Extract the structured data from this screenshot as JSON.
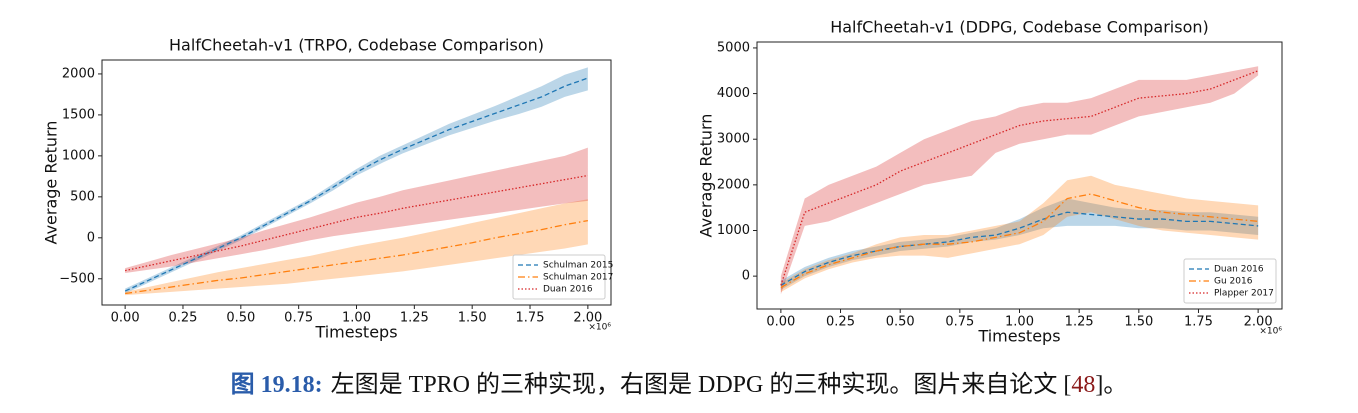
{
  "chart_data": [
    {
      "type": "line",
      "title": "HalfCheetah-v1 (TRPO, Codebase Comparison)",
      "x_label": "Timesteps",
      "y_label": "Average Return",
      "x_offset_label": "×10⁶",
      "x": [
        0,
        0.1,
        0.2,
        0.3,
        0.4,
        0.5,
        0.6,
        0.7,
        0.8,
        0.9,
        1.0,
        1.1,
        1.2,
        1.3,
        1.4,
        1.5,
        1.6,
        1.7,
        1.8,
        1.9,
        2.0
      ],
      "xlim": [
        -0.1,
        2.1
      ],
      "xticks": [
        {
          "value": 0,
          "label": "0.00"
        },
        {
          "value": 0.25,
          "label": "0.25"
        },
        {
          "value": 0.5,
          "label": "0.50"
        },
        {
          "value": 0.75,
          "label": "0.75"
        },
        {
          "value": 1,
          "label": "1.00"
        },
        {
          "value": 1.25,
          "label": "1.25"
        },
        {
          "value": 1.5,
          "label": "1.50"
        },
        {
          "value": 1.75,
          "label": "1.75"
        },
        {
          "value": 2,
          "label": "2.00"
        }
      ],
      "ylim": [
        -820,
        2170
      ],
      "yticks": [
        {
          "value": -500,
          "label": "−500"
        },
        0,
        500,
        1000,
        1500,
        2000
      ],
      "legend": "lower right",
      "series": [
        {
          "name": "Schulman 2015",
          "color": "#1f77b4",
          "linestyle": "dashed",
          "values": [
            -650,
            -520,
            -390,
            -260,
            -130,
            0,
            150,
            300,
            450,
            620,
            800,
            950,
            1080,
            1200,
            1320,
            1420,
            1520,
            1620,
            1720,
            1850,
            1950
          ],
          "lower": [
            -680,
            -550,
            -420,
            -290,
            -160,
            -30,
            120,
            270,
            420,
            580,
            760,
            900,
            1030,
            1140,
            1250,
            1340,
            1430,
            1510,
            1600,
            1720,
            1800
          ],
          "upper": [
            -620,
            -490,
            -360,
            -230,
            -100,
            30,
            180,
            330,
            480,
            660,
            840,
            1000,
            1130,
            1260,
            1390,
            1500,
            1610,
            1730,
            1850,
            1990,
            2080
          ]
        },
        {
          "name": "Schulman 2017",
          "color": "#ff7f0e",
          "linestyle": "dashdot",
          "values": [
            -680,
            -640,
            -600,
            -560,
            -520,
            -490,
            -450,
            -410,
            -370,
            -330,
            -290,
            -250,
            -210,
            -160,
            -110,
            -60,
            0,
            50,
            100,
            160,
            210
          ],
          "lower": [
            -700,
            -680,
            -660,
            -640,
            -620,
            -600,
            -580,
            -560,
            -530,
            -500,
            -470,
            -440,
            -410,
            -370,
            -330,
            -290,
            -250,
            -210,
            -170,
            -130,
            -80
          ],
          "upper": [
            -660,
            -600,
            -540,
            -480,
            -420,
            -370,
            -320,
            -270,
            -220,
            -160,
            -100,
            -50,
            0,
            60,
            120,
            180,
            240,
            300,
            360,
            420,
            470
          ]
        },
        {
          "name": "Duan 2016",
          "color": "#d62728",
          "linestyle": "dotted",
          "values": [
            -400,
            -340,
            -280,
            -220,
            -160,
            -100,
            -30,
            40,
            110,
            180,
            250,
            300,
            360,
            410,
            460,
            510,
            560,
            610,
            660,
            710,
            760
          ],
          "lower": [
            -430,
            -390,
            -350,
            -300,
            -250,
            -200,
            -150,
            -90,
            -30,
            20,
            60,
            100,
            140,
            180,
            220,
            260,
            300,
            340,
            380,
            420,
            450
          ],
          "upper": [
            -370,
            -290,
            -210,
            -140,
            -70,
            0,
            90,
            170,
            250,
            340,
            430,
            500,
            580,
            640,
            700,
            760,
            820,
            880,
            940,
            1000,
            1100
          ]
        }
      ]
    },
    {
      "type": "line",
      "title": "HalfCheetah-v1 (DDPG, Codebase Comparison)",
      "x_label": "Timesteps",
      "y_label": "Average Return",
      "x_offset_label": "×10⁶",
      "x": [
        0,
        0.1,
        0.2,
        0.3,
        0.4,
        0.5,
        0.6,
        0.7,
        0.8,
        0.9,
        1.0,
        1.1,
        1.2,
        1.3,
        1.4,
        1.5,
        1.6,
        1.7,
        1.8,
        1.9,
        2.0
      ],
      "xlim": [
        -0.1,
        2.1
      ],
      "xticks": [
        {
          "value": 0,
          "label": "0.00"
        },
        {
          "value": 0.25,
          "label": "0.25"
        },
        {
          "value": 0.5,
          "label": "0.50"
        },
        {
          "value": 0.75,
          "label": "0.75"
        },
        {
          "value": 1,
          "label": "1.00"
        },
        {
          "value": 1.25,
          "label": "1.25"
        },
        {
          "value": 1.5,
          "label": "1.50"
        },
        {
          "value": 1.75,
          "label": "1.75"
        },
        {
          "value": 2,
          "label": "2.00"
        }
      ],
      "ylim": [
        -720,
        5130
      ],
      "yticks": [
        0,
        1000,
        2000,
        3000,
        4000,
        5000
      ],
      "legend": "lower right",
      "series": [
        {
          "name": "Duan 2016",
          "color": "#1f77b4",
          "linestyle": "dashed",
          "values": [
            -200,
            100,
            300,
            450,
            550,
            650,
            700,
            750,
            850,
            900,
            1050,
            1250,
            1400,
            1350,
            1300,
            1250,
            1250,
            1200,
            1200,
            1150,
            1100
          ],
          "lower": [
            -300,
            0,
            200,
            350,
            450,
            550,
            600,
            650,
            750,
            800,
            900,
            1050,
            1100,
            1100,
            1100,
            1050,
            1050,
            1000,
            1000,
            950,
            900
          ],
          "upper": [
            -100,
            200,
            400,
            550,
            650,
            750,
            800,
            850,
            950,
            1050,
            1250,
            1500,
            1700,
            1600,
            1500,
            1450,
            1450,
            1400,
            1400,
            1350,
            1300
          ]
        },
        {
          "name": "Gu 2016",
          "color": "#ff7f0e",
          "linestyle": "dashdot",
          "values": [
            -250,
            50,
            250,
            400,
            550,
            650,
            700,
            700,
            750,
            850,
            950,
            1200,
            1700,
            1800,
            1650,
            1500,
            1400,
            1350,
            1300,
            1250,
            1200
          ],
          "lower": [
            -350,
            -50,
            150,
            300,
            400,
            450,
            450,
            400,
            500,
            600,
            700,
            900,
            1300,
            1400,
            1250,
            1100,
            1000,
            950,
            900,
            850,
            800
          ],
          "upper": [
            -150,
            150,
            350,
            500,
            700,
            850,
            900,
            900,
            1000,
            1100,
            1200,
            1600,
            2100,
            2200,
            2000,
            1900,
            1800,
            1700,
            1650,
            1600,
            1550
          ]
        },
        {
          "name": "Plapper 2017",
          "color": "#d62728",
          "linestyle": "dotted",
          "values": [
            -200,
            1400,
            1600,
            1800,
            2000,
            2300,
            2500,
            2700,
            2900,
            3100,
            3300,
            3400,
            3450,
            3500,
            3700,
            3900,
            3950,
            4000,
            4100,
            4300,
            4500
          ],
          "lower": [
            -400,
            1100,
            1200,
            1400,
            1600,
            1800,
            2000,
            2100,
            2200,
            2700,
            2900,
            3000,
            3100,
            3100,
            3300,
            3500,
            3600,
            3700,
            3800,
            4000,
            4400
          ],
          "upper": [
            0,
            1700,
            2000,
            2200,
            2400,
            2700,
            3000,
            3200,
            3400,
            3500,
            3700,
            3800,
            3800,
            3900,
            4100,
            4300,
            4300,
            4300,
            4400,
            4500,
            4600
          ]
        }
      ]
    }
  ],
  "caption": {
    "label": "图 19.18:",
    "text": "左图是 TPRO 的三种实现，右图是 DDPG 的三种实现。图片来自论文 [",
    "ref": "48",
    "end": "]。"
  }
}
